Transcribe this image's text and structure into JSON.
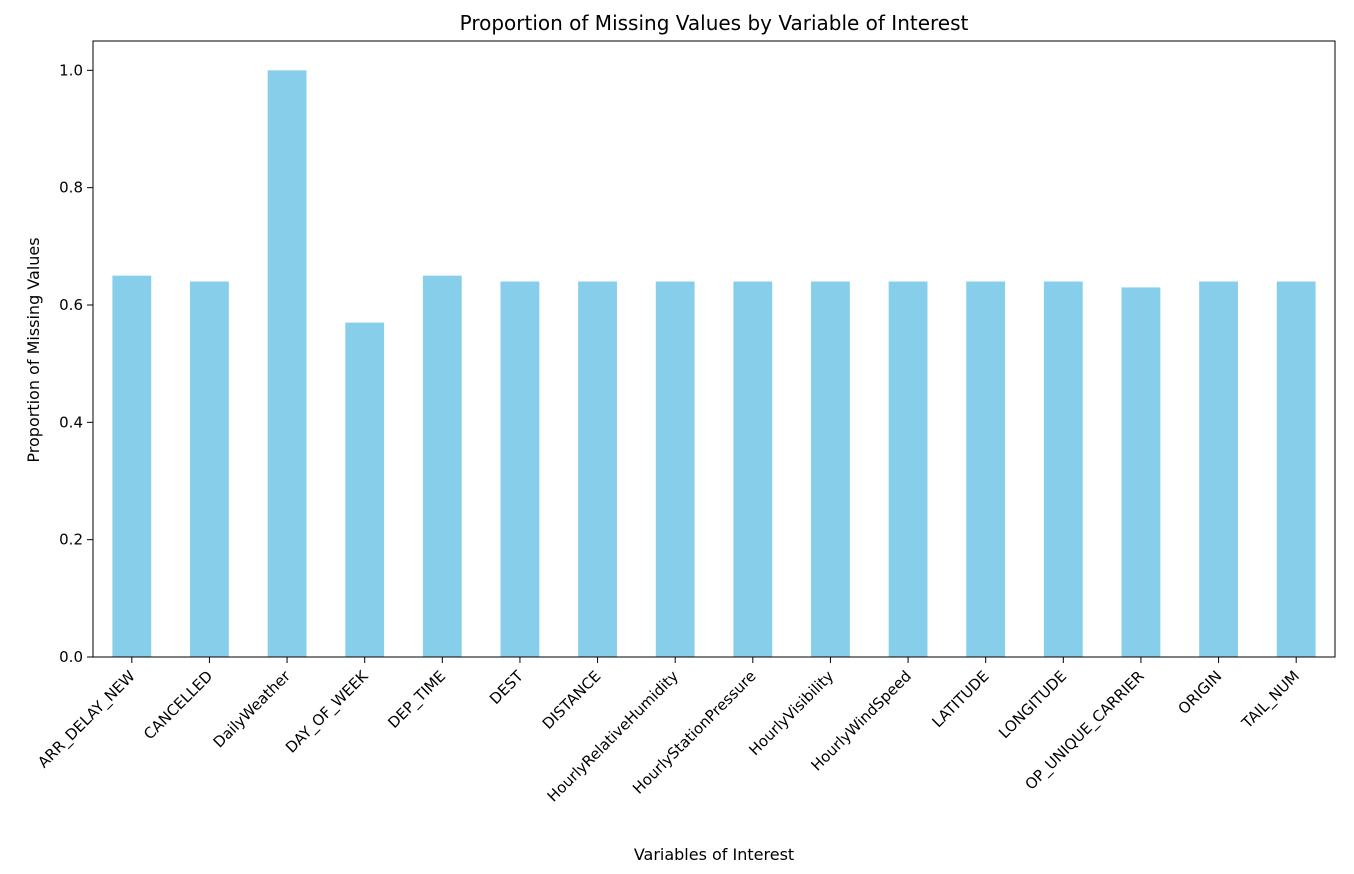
{
  "chart_data": {
    "type": "bar",
    "title": "Proportion of Missing Values by Variable of Interest",
    "xlabel": "Variables of Interest",
    "ylabel": "Proportion of Missing Values",
    "categories": [
      "ARR_DELAY_NEW",
      "CANCELLED",
      "DailyWeather",
      "DAY_OF_WEEK",
      "DEP_TIME",
      "DEST",
      "DISTANCE",
      "HourlyRelativeHumidity",
      "HourlyStationPressure",
      "HourlyVisibility",
      "HourlyWindSpeed",
      "LATITUDE",
      "LONGITUDE",
      "OP_UNIQUE_CARRIER",
      "ORIGIN",
      "TAIL_NUM"
    ],
    "values": [
      0.65,
      0.64,
      1.0,
      0.57,
      0.65,
      0.64,
      0.64,
      0.64,
      0.64,
      0.64,
      0.64,
      0.64,
      0.64,
      0.63,
      0.64,
      0.64
    ],
    "ylim": [
      0,
      1.05
    ],
    "yticks": [
      0.0,
      0.2,
      0.4,
      0.6,
      0.8,
      1.0
    ],
    "ytick_labels": [
      "0.0",
      "0.2",
      "0.4",
      "0.6",
      "0.8",
      "1.0"
    ],
    "grid": false,
    "legend": "none",
    "bar_color": "#87ceeb",
    "axis_color": "#000000"
  }
}
